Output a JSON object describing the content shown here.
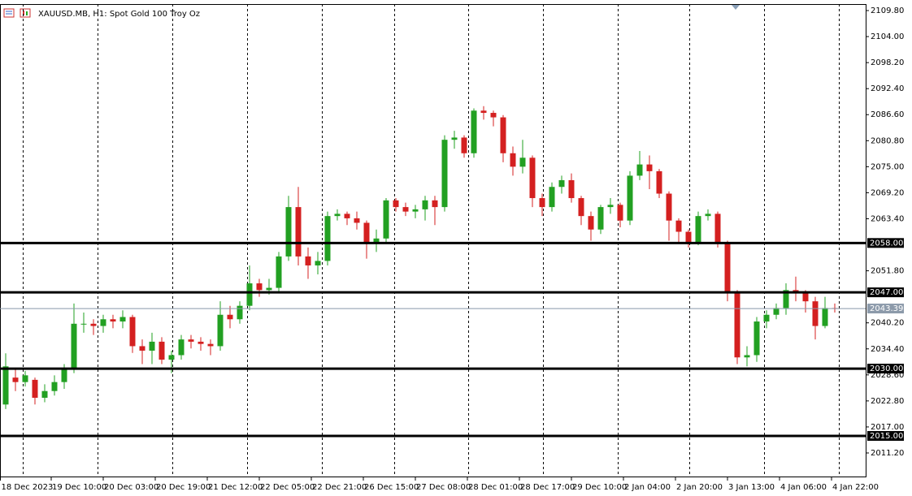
{
  "chart_data": {
    "type": "candlestick",
    "title": "XAUUSD.MB, H1:  Spot Gold 100 Troy Oz",
    "up_color": "#22a022",
    "down_color": "#d42020",
    "x": [
      0,
      3,
      6,
      9,
      12,
      15,
      18,
      21,
      24,
      27,
      30,
      33,
      36,
      39,
      42,
      45,
      48,
      51,
      54,
      57,
      60,
      63,
      66,
      69,
      72,
      75,
      78,
      81,
      84,
      87,
      90,
      93,
      96,
      99,
      102,
      105,
      108,
      111,
      114,
      117,
      120,
      123,
      126,
      129,
      132,
      135,
      138,
      141,
      144,
      147,
      150,
      153,
      156,
      159,
      162,
      165,
      168,
      171,
      174,
      177,
      180,
      183,
      186,
      189,
      192,
      195,
      198,
      201,
      204,
      207,
      210,
      213,
      216,
      219,
      222,
      225,
      228,
      231,
      234,
      237,
      240,
      243,
      246,
      249,
      252,
      255
    ],
    "open": [
      2022,
      2028,
      2027,
      2027.5,
      2023.5,
      2025,
      2027,
      2030,
      2040,
      2040,
      2039.5,
      2041,
      2040.5,
      2041.5,
      2035,
      2034,
      2036,
      2032,
      2033,
      2036.5,
      2036,
      2035.5,
      2035,
      2042,
      2041,
      2044,
      2049,
      2047.5,
      2048,
      2055,
      2066,
      2055,
      2053,
      2054,
      2064,
      2064.5,
      2063.5,
      2062.5,
      2058,
      2059,
      2067.5,
      2066,
      2065,
      2065.5,
      2067.5,
      2066,
      2081,
      2081.5,
      2078,
      2087.5,
      2087,
      2086,
      2078,
      2075,
      2077,
      2068,
      2066,
      2070.5,
      2072,
      2068,
      2064,
      2061,
      2066,
      2066.5,
      2063,
      2073,
      2075.5,
      2074,
      2069,
      2063,
      2060.5,
      2058,
      2064,
      2064.5,
      2058,
      2047,
      2032.5,
      2033,
      2040.5,
      2042,
      2043.5,
      2047.5,
      2047,
      2045,
      2039.5,
      2043.5
    ],
    "high": [
      2033.4,
      2030,
      2029.5,
      2028,
      2026.5,
      2028.5,
      2031,
      2044.5,
      2042.5,
      2041,
      2042,
      2042,
      2043,
      2042,
      2036.5,
      2038,
      2037,
      2034,
      2037.5,
      2037.5,
      2037,
      2036.5,
      2045,
      2044,
      2045,
      2053,
      2050,
      2050,
      2056,
      2068.5,
      2070.5,
      2057,
      2056,
      2065,
      2065.5,
      2065,
      2065,
      2063,
      2061,
      2068,
      2068,
      2067,
      2066.5,
      2068.5,
      2068.5,
      2082,
      2083,
      2082,
      2088,
      2088.5,
      2087.5,
      2086.5,
      2079.5,
      2081,
      2077.5,
      2069,
      2071.5,
      2073,
      2073.5,
      2068.5,
      2065,
      2066.5,
      2068,
      2067,
      2074,
      2078.5,
      2077.5,
      2074.5,
      2069.5,
      2063.5,
      2061,
      2065,
      2065.5,
      2065,
      2058.5,
      2047.5,
      2035,
      2041.5,
      2043,
      2044.5,
      2049,
      2050.5,
      2047.5,
      2046,
      2046,
      2044.5
    ],
    "low": [
      2021,
      2025,
      2026,
      2022,
      2022.5,
      2024,
      2025.5,
      2029,
      2038,
      2037.5,
      2038,
      2039,
      2039,
      2033.5,
      2031,
      2031,
      2031,
      2029,
      2032,
      2034.5,
      2034,
      2033,
      2034,
      2039,
      2040,
      2043,
      2046,
      2046.5,
      2047,
      2054,
      2053,
      2050,
      2051,
      2053,
      2063,
      2062,
      2061,
      2054.5,
      2056,
      2058,
      2065,
      2064,
      2063.5,
      2063,
      2062,
      2065,
      2079,
      2077,
      2077,
      2085.5,
      2084,
      2076,
      2073,
      2073.5,
      2066,
      2064,
      2065,
      2069,
      2067,
      2062,
      2058.5,
      2060,
      2064.5,
      2061.5,
      2062,
      2072,
      2070,
      2068,
      2058.5,
      2058,
      2057,
      2057.5,
      2063,
      2057,
      2045,
      2031,
      2030.5,
      2031.5,
      2039,
      2041,
      2042,
      2045,
      2042.5,
      2036.5,
      2039,
      2042.5
    ],
    "close": [
      2030.5,
      2027,
      2028.5,
      2023.5,
      2025,
      2027,
      2030,
      2040,
      2040,
      2039.5,
      2041,
      2040.5,
      2041.5,
      2035,
      2034,
      2036,
      2032,
      2033,
      2036.5,
      2036,
      2035.5,
      2035,
      2042,
      2041,
      2044,
      2049,
      2047.5,
      2048,
      2055,
      2066,
      2055,
      2053,
      2054,
      2064,
      2064.5,
      2063.5,
      2062.5,
      2058,
      2059,
      2067.5,
      2066,
      2065,
      2065.5,
      2067.5,
      2066,
      2081,
      2081.5,
      2078,
      2087.5,
      2087,
      2086,
      2078,
      2075,
      2077,
      2068,
      2066,
      2070.5,
      2072,
      2068,
      2064,
      2061,
      2066,
      2066.5,
      2063,
      2073,
      2075.5,
      2074,
      2069,
      2063,
      2060.5,
      2058,
      2064,
      2064.5,
      2058,
      2047,
      2032.5,
      2033,
      2040.5,
      2042,
      2043.5,
      2047.5,
      2047,
      2045,
      2039.5,
      2043.5,
      2043.39
    ],
    "xlim": [
      -1.75,
      264.5
    ],
    "ylim": [
      2005.95,
      2111.25
    ],
    "xticks": [
      {
        "value": -2,
        "label": "18 Dec 2023"
      },
      {
        "value": 14,
        "label": "19 Dec 10:00"
      },
      {
        "value": 30,
        "label": "20 Dec 03:00"
      },
      {
        "value": 46,
        "label": "20 Dec 19:00"
      },
      {
        "value": 62,
        "label": "21 Dec 12:00"
      },
      {
        "value": 78,
        "label": "22 Dec 05:00"
      },
      {
        "value": 94,
        "label": "22 Dec 21:00"
      },
      {
        "value": 110,
        "label": "26 Dec 15:00"
      },
      {
        "value": 126,
        "label": "27 Dec 08:00"
      },
      {
        "value": 142,
        "label": "28 Dec 01:00"
      },
      {
        "value": 158,
        "label": "28 Dec 17:00"
      },
      {
        "value": 174,
        "label": "29 Dec 10:00"
      },
      {
        "value": 190,
        "label": "2 Jan 04:00"
      },
      {
        "value": 206,
        "label": "2 Jan 20:00"
      },
      {
        "value": 222,
        "label": "3 Jan 13:00"
      },
      {
        "value": 238,
        "label": "4 Jan 06:00"
      },
      {
        "value": 254,
        "label": "4 Jan 22:00"
      }
    ],
    "xgrid": [
      5.25,
      28.25,
      51.25,
      74.25,
      97.25,
      119.5,
      142.25,
      165.25,
      188.25,
      210.25,
      233.25,
      256.25
    ],
    "yticks": [
      {
        "value": 2109.8,
        "label": "2109.80"
      },
      {
        "value": 2104,
        "label": "2104.00"
      },
      {
        "value": 2098.2,
        "label": "2098.20"
      },
      {
        "value": 2092.4,
        "label": "2092.40"
      },
      {
        "value": 2086.6,
        "label": "2086.60"
      },
      {
        "value": 2080.8,
        "label": "2080.80"
      },
      {
        "value": 2075,
        "label": "2075.00"
      },
      {
        "value": 2069.2,
        "label": "2069.20"
      },
      {
        "value": 2063.4,
        "label": "2063.40"
      },
      {
        "value": 2051.8,
        "label": "2051.80"
      },
      {
        "value": 2040.2,
        "label": "2040.20"
      },
      {
        "value": 2034.4,
        "label": "2034.40"
      },
      {
        "value": 2028.6,
        "label": "2028.60"
      },
      {
        "value": 2022.8,
        "label": "2022.80"
      },
      {
        "value": 2017,
        "label": "2017.00"
      },
      {
        "value": 2011.2,
        "label": "2011.20"
      }
    ],
    "levels": [
      {
        "value": 2058,
        "label": "2058.00"
      },
      {
        "value": 2047,
        "label": "2047.00"
      },
      {
        "value": 2030,
        "label": "2030.00"
      },
      {
        "value": 2015,
        "label": "2015.00"
      }
    ],
    "last_price": {
      "value": 2043.39,
      "label": "2043.39"
    }
  }
}
